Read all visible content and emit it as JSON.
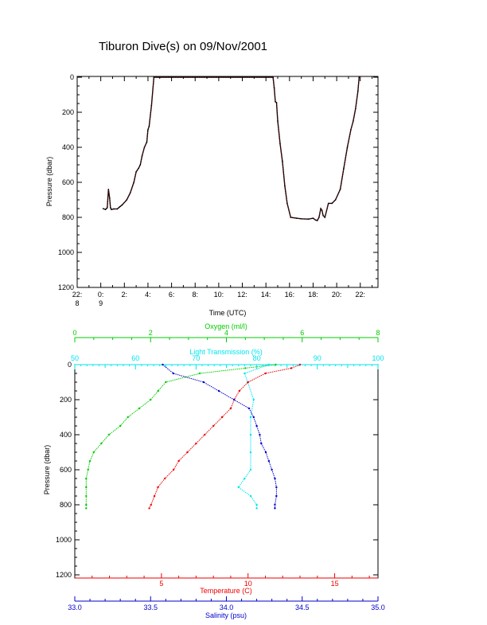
{
  "title": "Tiburon Dive(s) on 09/Nov/2001",
  "colors": {
    "axis": "#000000",
    "depth_trace": "#000000",
    "depth_trace_overlay": "#ff0000",
    "oxygen": "#00cc00",
    "transmission": "#00e5ee",
    "temperature": "#ee0000",
    "salinity": "#0000cc"
  },
  "chart_data": [
    {
      "type": "line",
      "name": "dive-depth",
      "xlabel": "Time (UTC)",
      "ylabel": "Pressure (dbar)",
      "x_tick_labels": [
        {
          "x": 22,
          "l1": "22:",
          "l2": "8"
        },
        {
          "x": 24,
          "l1": "0:",
          "l2": "9"
        },
        {
          "x": 26,
          "l1": "2:",
          "l2": ""
        },
        {
          "x": 28,
          "l1": "4:",
          "l2": ""
        },
        {
          "x": 30,
          "l1": "6:",
          "l2": ""
        },
        {
          "x": 32,
          "l1": "8:",
          "l2": ""
        },
        {
          "x": 34,
          "l1": "10:",
          "l2": ""
        },
        {
          "x": 36,
          "l1": "12:",
          "l2": ""
        },
        {
          "x": 38,
          "l1": "14:",
          "l2": ""
        },
        {
          "x": 40,
          "l1": "16:",
          "l2": ""
        },
        {
          "x": 42,
          "l1": "18:",
          "l2": ""
        },
        {
          "x": 44,
          "l1": "20:",
          "l2": ""
        },
        {
          "x": 46,
          "l1": "22:",
          "l2": ""
        }
      ],
      "xlim": [
        22,
        47.5
      ],
      "ylim": [
        1200,
        0
      ],
      "y_ticks": [
        0,
        200,
        400,
        600,
        800,
        1000,
        1200
      ],
      "x": [
        24.2,
        24.4,
        24.55,
        24.65,
        24.75,
        24.82,
        24.9,
        25.1,
        25.4,
        25.6,
        25.8,
        26.2,
        26.5,
        26.8,
        27.0,
        27.2,
        27.35,
        27.5,
        27.7,
        27.9,
        28.0,
        28.1,
        28.3,
        28.5,
        30.0,
        33.0,
        36.0,
        38.6,
        38.7,
        38.8,
        38.9,
        39.0,
        39.2,
        39.4,
        39.6,
        39.8,
        40.1,
        40.6,
        41.0,
        41.6,
        42.0,
        42.2,
        42.35,
        42.5,
        42.65,
        42.75,
        42.85,
        43.0,
        43.3,
        43.6,
        43.9,
        44.3,
        44.6,
        44.9,
        45.2,
        45.4,
        45.6,
        45.8,
        45.9
      ],
      "values": [
        750,
        755,
        745,
        640,
        690,
        745,
        755,
        752,
        752,
        740,
        730,
        700,
        660,
        600,
        540,
        520,
        500,
        450,
        400,
        370,
        300,
        280,
        160,
        0,
        0,
        0,
        0,
        0,
        60,
        140,
        145,
        250,
        380,
        480,
        620,
        720,
        800,
        805,
        808,
        810,
        805,
        815,
        818,
        800,
        750,
        760,
        790,
        800,
        720,
        720,
        700,
        640,
        520,
        400,
        300,
        250,
        180,
        80,
        0
      ]
    },
    {
      "type": "scatter",
      "name": "ctd-profiles",
      "ylabel": "Pressure (dbar)",
      "ylim": [
        1200,
        0
      ],
      "y_ticks": [
        0,
        200,
        400,
        600,
        800,
        1000,
        1200
      ],
      "axes": {
        "oxygen": {
          "label": "Oxygen (ml/l)",
          "lim": [
            0,
            8
          ],
          "ticks": [
            0,
            2,
            4,
            6,
            8
          ],
          "position": "top"
        },
        "transmission": {
          "label": "Light Transmission (%)",
          "lim": [
            50,
            100
          ],
          "ticks": [
            50,
            60,
            70,
            80,
            90,
            100
          ],
          "position": "top"
        },
        "temperature": {
          "label": "Temperature (C)",
          "lim": [
            0,
            17.5
          ],
          "ticks": [
            5,
            10,
            15
          ],
          "position": "bottom"
        },
        "salinity": {
          "label": "Salinity (psu)",
          "lim": [
            33.0,
            35.0
          ],
          "ticks": [
            "33.0",
            "33.5",
            "34.0",
            "34.5",
            "35.0"
          ],
          "position": "bottom"
        }
      },
      "series": [
        {
          "key": "oxygen",
          "pressure": [
            0,
            20,
            50,
            100,
            150,
            200,
            250,
            300,
            350,
            400,
            450,
            500,
            550,
            600,
            650,
            700,
            750,
            800,
            820
          ],
          "values": [
            5.3,
            4.5,
            3.3,
            2.4,
            2.2,
            2.0,
            1.7,
            1.4,
            1.2,
            0.9,
            0.7,
            0.5,
            0.4,
            0.35,
            0.3,
            0.3,
            0.3,
            0.3,
            0.3
          ]
        },
        {
          "key": "transmission",
          "pressure": [
            0,
            50,
            100,
            200,
            300,
            400,
            500,
            600,
            650,
            700,
            750,
            800,
            820
          ],
          "values": [
            82,
            78,
            78.5,
            79.5,
            79,
            79,
            79,
            79,
            78,
            77,
            79,
            80,
            80
          ]
        },
        {
          "key": "temperature",
          "pressure": [
            0,
            20,
            50,
            100,
            150,
            200,
            250,
            300,
            350,
            400,
            450,
            500,
            550,
            600,
            650,
            700,
            750,
            800,
            820
          ],
          "values": [
            13.0,
            12.5,
            11.0,
            10.0,
            9.5,
            9.2,
            9.0,
            8.5,
            8.0,
            7.5,
            7.0,
            6.5,
            6.0,
            5.7,
            5.2,
            4.8,
            4.6,
            4.4,
            4.3
          ]
        },
        {
          "key": "salinity",
          "pressure": [
            0,
            50,
            100,
            150,
            200,
            250,
            300,
            350,
            400,
            450,
            500,
            550,
            600,
            650,
            700,
            750,
            800,
            820
          ],
          "values": [
            33.58,
            33.65,
            33.85,
            33.95,
            34.05,
            34.15,
            34.18,
            34.2,
            34.22,
            34.23,
            34.26,
            34.28,
            34.3,
            34.32,
            34.33,
            34.33,
            34.32,
            34.32
          ]
        }
      ]
    }
  ]
}
